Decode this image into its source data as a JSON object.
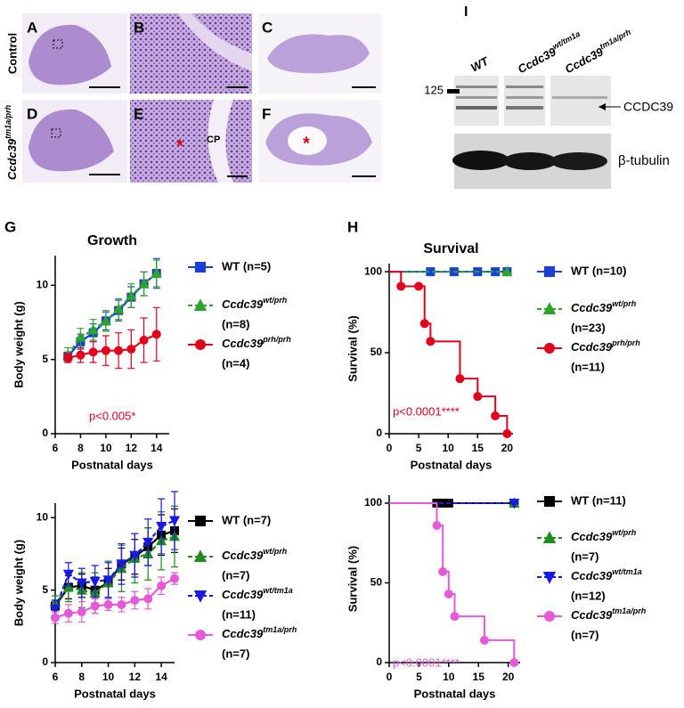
{
  "figure": {
    "panels": [
      "A",
      "B",
      "C",
      "D",
      "E",
      "F"
    ],
    "row_control": "Control",
    "row_mutant": {
      "name": "Ccdc39",
      "sup": "tm1a/prh"
    },
    "cp": "CP",
    "asterisk": "*"
  },
  "blot": {
    "label": "I",
    "lanes": [
      {
        "name": "WT"
      },
      {
        "name": "Ccdc39",
        "sup": "wt/tm1a"
      },
      {
        "name": "Ccdc39",
        "sup": "tm1a/prh"
      }
    ],
    "marker": "125",
    "band": "CCDC39",
    "loading": "β-tubulin"
  },
  "section_labels": [
    "G",
    "H"
  ],
  "chart_data": [
    {
      "type": "line",
      "title": "Growth",
      "ylabel": "Body weight (g)",
      "xlabel": "Postnatal days",
      "xlim": [
        6,
        15
      ],
      "xticks": [
        6,
        8,
        10,
        12,
        14
      ],
      "ylim": [
        0,
        12
      ],
      "yticks": [
        0,
        5,
        10
      ],
      "annotation": "p<0.005*",
      "annotation_color": "#e3001b",
      "series": [
        {
          "name": "WT (n=5)",
          "color": "#1a3fd6",
          "marker": "square",
          "dash": false,
          "x": [
            7,
            8,
            9,
            10,
            11,
            12,
            13,
            14
          ],
          "values": [
            5.2,
            6.2,
            6.8,
            7.6,
            8.3,
            9.2,
            10.1,
            10.8
          ],
          "errors": [
            0.3,
            0.5,
            0.6,
            0.6,
            0.7,
            0.7,
            0.8,
            1.0
          ]
        },
        {
          "name": "Ccdc39",
          "sup": "wt/prh",
          "n": "(n=8)",
          "color": "#2aa52a",
          "marker": "triangle",
          "dash": true,
          "x": [
            7,
            8,
            9,
            10,
            11,
            12,
            13,
            14
          ],
          "values": [
            5.3,
            6.5,
            7.0,
            7.6,
            8.4,
            9.3,
            10.1,
            10.8
          ],
          "errors": [
            0.5,
            0.6,
            0.7,
            0.7,
            0.7,
            0.8,
            0.8,
            0.9
          ]
        },
        {
          "name": "Ccdc39",
          "sup": "prh/prh",
          "n": "(n=4)",
          "color": "#e3001b",
          "marker": "circle",
          "dash": false,
          "x": [
            7,
            8,
            9,
            10,
            11,
            12,
            13,
            14
          ],
          "values": [
            5.1,
            5.3,
            5.5,
            5.6,
            5.6,
            5.7,
            6.3,
            6.7
          ],
          "errors": [
            0.3,
            0.5,
            0.7,
            1.0,
            1.2,
            1.3,
            1.5,
            1.8
          ]
        }
      ]
    },
    {
      "type": "line",
      "ylabel": "Body weight (g)",
      "xlabel": "Postnatal days",
      "xlim": [
        6,
        15
      ],
      "xticks": [
        6,
        8,
        10,
        12,
        14
      ],
      "ylim": [
        0,
        11
      ],
      "yticks": [
        0,
        5,
        10
      ],
      "series": [
        {
          "name": "WT (n=7)",
          "color": "#000000",
          "marker": "square",
          "dash": false,
          "x": [
            6,
            7,
            8,
            9,
            10,
            11,
            12,
            13,
            14,
            15
          ],
          "values": [
            3.9,
            5.2,
            5.3,
            5.0,
            5.5,
            6.8,
            7.3,
            8.0,
            8.8,
            9.1
          ],
          "errors": [
            0.4,
            0.8,
            0.8,
            0.9,
            1.0,
            1.1,
            1.2,
            1.3,
            1.4,
            1.5
          ]
        },
        {
          "name": "Ccdc39",
          "sup": "wt/prh",
          "n": "(n=7)",
          "color": "#1e8c1e",
          "marker": "triangle",
          "dash": true,
          "x": [
            6,
            7,
            8,
            9,
            10,
            11,
            12,
            13,
            14,
            15
          ],
          "values": [
            4.1,
            5.2,
            5.0,
            4.8,
            5.5,
            6.5,
            7.2,
            7.5,
            8.4,
            8.7
          ],
          "errors": [
            0.5,
            1.0,
            1.2,
            1.4,
            1.5,
            1.6,
            1.7,
            1.8,
            2.0,
            2.1
          ]
        },
        {
          "name": "Ccdc39",
          "sup": "wt/tm1a",
          "n": "(n=11)",
          "color": "#1a1ae6",
          "marker": "triangle-down",
          "dash": true,
          "x": [
            6,
            7,
            8,
            9,
            10,
            11,
            12,
            13,
            14,
            15
          ],
          "values": [
            3.7,
            6.1,
            5.5,
            5.6,
            5.7,
            6.8,
            7.4,
            8.3,
            9.4,
            9.8
          ],
          "errors": [
            0.6,
            0.8,
            1.0,
            1.1,
            1.2,
            1.4,
            1.5,
            1.6,
            1.9,
            2.0
          ]
        },
        {
          "name": "Ccdc39",
          "sup": "tm1a/prh",
          "n": "(n=7)",
          "color": "#e55ad8",
          "marker": "circle",
          "dash": false,
          "x": [
            6,
            7,
            8,
            9,
            10,
            11,
            12,
            13,
            14,
            15
          ],
          "values": [
            3.1,
            3.4,
            3.5,
            3.9,
            4.0,
            4.0,
            4.3,
            4.4,
            5.3,
            5.8
          ],
          "errors": [
            0.4,
            0.6,
            0.7,
            0.5,
            0.4,
            0.5,
            0.6,
            0.7,
            0.6,
            0.4
          ]
        }
      ]
    },
    {
      "type": "step",
      "title": "Survival",
      "ylabel": "Survival (%)",
      "xlabel": "Postnatal days",
      "xlim": [
        0,
        21
      ],
      "xticks": [
        0,
        5,
        10,
        15,
        20
      ],
      "ylim": [
        0,
        105
      ],
      "yticks": [
        0,
        50,
        100
      ],
      "annotation": "p<0.0001****",
      "annotation_color": "#e3001b",
      "series": [
        {
          "name": "WT (n=10)",
          "color": "#1a3fd6",
          "marker": "square",
          "dash": false,
          "x": [
            0,
            7,
            11,
            15,
            18,
            20
          ],
          "values": [
            100,
            100,
            100,
            100,
            100,
            100
          ]
        },
        {
          "name": "Ccdc39",
          "sup": "wt/prh",
          "n": "(n=23)",
          "color": "#2aa52a",
          "marker": "triangle",
          "dash": true,
          "x": [
            0,
            20
          ],
          "values": [
            100,
            100
          ]
        },
        {
          "name": "Ccdc39",
          "sup": "prh/prh",
          "n": "(n=11)",
          "color": "#e3001b",
          "marker": "circle",
          "dash": false,
          "x": [
            0,
            2,
            5,
            6,
            7,
            12,
            15,
            18,
            20
          ],
          "values": [
            100,
            91,
            91,
            68,
            57,
            34,
            23,
            11,
            0
          ]
        }
      ]
    },
    {
      "type": "step",
      "ylabel": "Survival (%)",
      "xlabel": "Postnatal days",
      "xlim": [
        0,
        22
      ],
      "xticks": [
        0,
        5,
        10,
        15,
        20
      ],
      "ylim": [
        0,
        105
      ],
      "yticks": [
        0,
        50,
        100
      ],
      "annotation": "p<0.0001****",
      "annotation_color": "#e55ad8",
      "series": [
        {
          "name": "WT (n=11)",
          "color": "#000000",
          "marker": "square",
          "dash": false,
          "x": [
            0,
            8,
            9,
            10,
            21
          ],
          "values": [
            100,
            100,
            100,
            100,
            100
          ]
        },
        {
          "name": "Ccdc39",
          "sup": "wt/prh",
          "n": "(n=7)",
          "color": "#1e8c1e",
          "marker": "triangle",
          "dash": true,
          "x": [
            0,
            21
          ],
          "values": [
            100,
            100
          ]
        },
        {
          "name": "Ccdc39",
          "sup": "wt/tm1a",
          "n": "(n=12)",
          "color": "#1a1ae6",
          "marker": "triangle-down",
          "dash": true,
          "x": [
            0,
            21
          ],
          "values": [
            100,
            100
          ]
        },
        {
          "name": "Ccdc39",
          "sup": "tm1a/prh",
          "n": "(n=7)",
          "color": "#e55ad8",
          "marker": "circle",
          "dash": false,
          "x": [
            0,
            8,
            9,
            10,
            11,
            16,
            21
          ],
          "values": [
            100,
            86,
            57,
            43,
            29,
            14,
            0
          ]
        }
      ]
    }
  ]
}
